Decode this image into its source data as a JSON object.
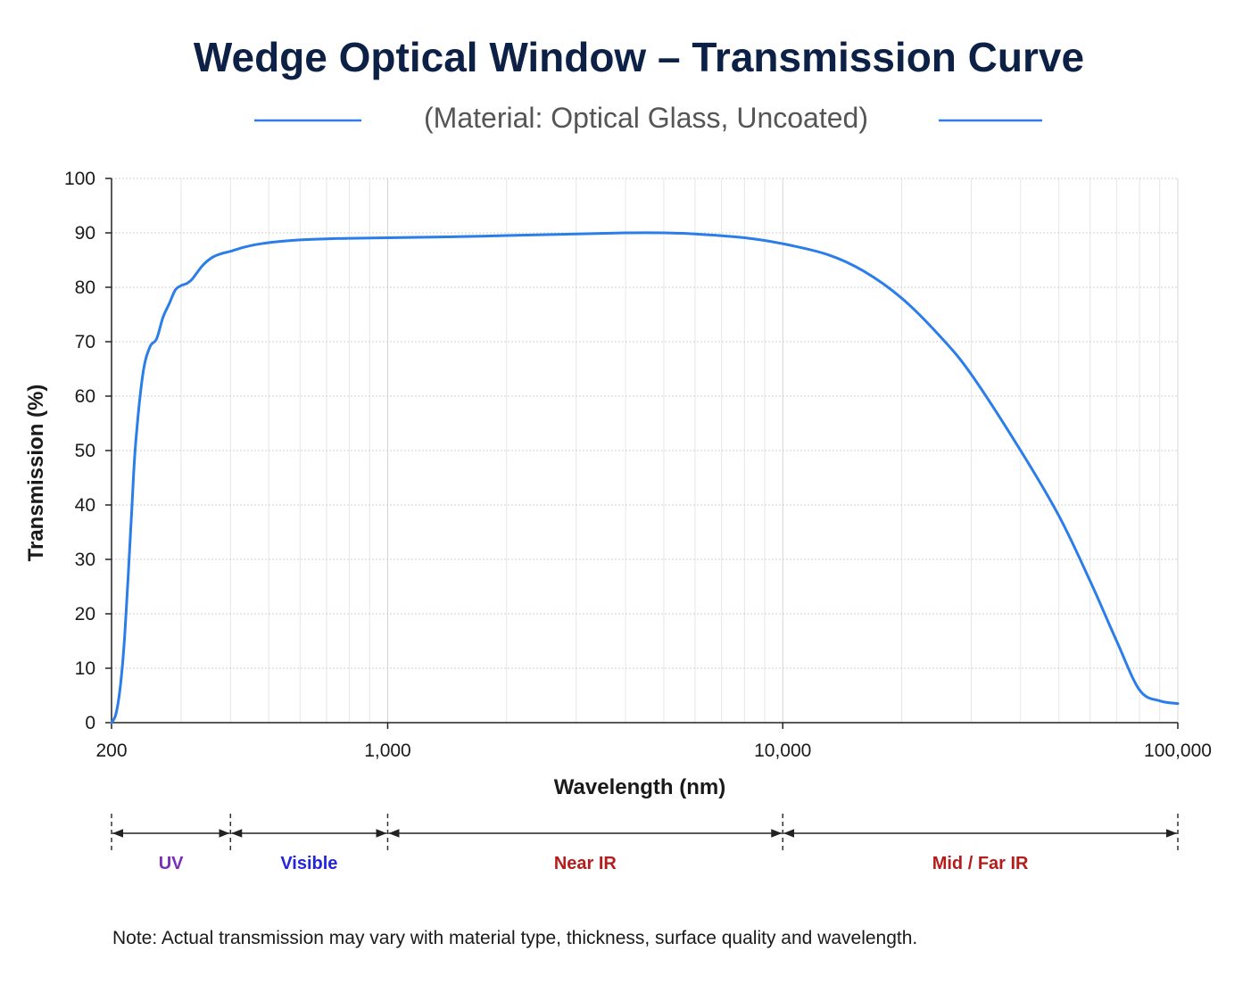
{
  "chart_data": {
    "type": "line",
    "title": "Wedge Optical Window – Transmission Curve",
    "subtitle": "(Material: Optical Glass, Uncoated)",
    "xlabel": "Wavelength (nm)",
    "ylabel": "Transmission (%)",
    "x_scale": "log",
    "xlim": [
      200,
      100000
    ],
    "ylim": [
      0,
      100
    ],
    "x_ticks": [
      200,
      1000,
      10000,
      100000
    ],
    "x_tick_labels": [
      "200",
      "1,000",
      "10,000",
      "100,000"
    ],
    "y_ticks": [
      0,
      10,
      20,
      30,
      40,
      50,
      60,
      70,
      80,
      90,
      100
    ],
    "y_tick_labels": [
      "0",
      "10",
      "20",
      "30",
      "40",
      "50",
      "60",
      "70",
      "80",
      "90",
      "100"
    ],
    "grid": true,
    "series": [
      {
        "color": "#2b7de9",
        "x": [
          200,
          205,
          210,
          215,
          220,
          225,
          230,
          240,
          250,
          260,
          270,
          280,
          290,
          300,
          310,
          320,
          340,
          360,
          380,
          400,
          430,
          460,
          500,
          550,
          600,
          700,
          800,
          1000,
          1500,
          2000,
          3000,
          4000,
          5000,
          6000,
          8000,
          10000,
          13000,
          16000,
          20000,
          25000,
          30000,
          40000,
          50000,
          60000,
          70000,
          80000,
          90000,
          100000
        ],
        "y": [
          0,
          1.5,
          6,
          14,
          26,
          39,
          51,
          64,
          69,
          70.5,
          74.5,
          77,
          79.5,
          80.3,
          80.7,
          81.5,
          84,
          85.5,
          86.2,
          86.6,
          87.3,
          87.8,
          88.2,
          88.5,
          88.7,
          88.9,
          89,
          89.1,
          89.3,
          89.5,
          89.8,
          90,
          90,
          89.8,
          89.1,
          88,
          86,
          83,
          78,
          71,
          64,
          50,
          38,
          26,
          15,
          6,
          4,
          3.5
        ]
      }
    ],
    "regions": [
      {
        "label": "UV",
        "from": 200,
        "to": 400,
        "color": "#7a2fb8"
      },
      {
        "label": "Visible",
        "from": 400,
        "to": 1000,
        "color": "#2424e0"
      },
      {
        "label": "Near IR",
        "from": 1000,
        "to": 10000,
        "color": "#b51c1c"
      },
      {
        "label": "Mid / Far IR",
        "from": 10000,
        "to": 100000,
        "color": "#b51c1c"
      }
    ],
    "note": "Note: Actual transmission may vary with material type, thickness, surface quality and wavelength."
  }
}
